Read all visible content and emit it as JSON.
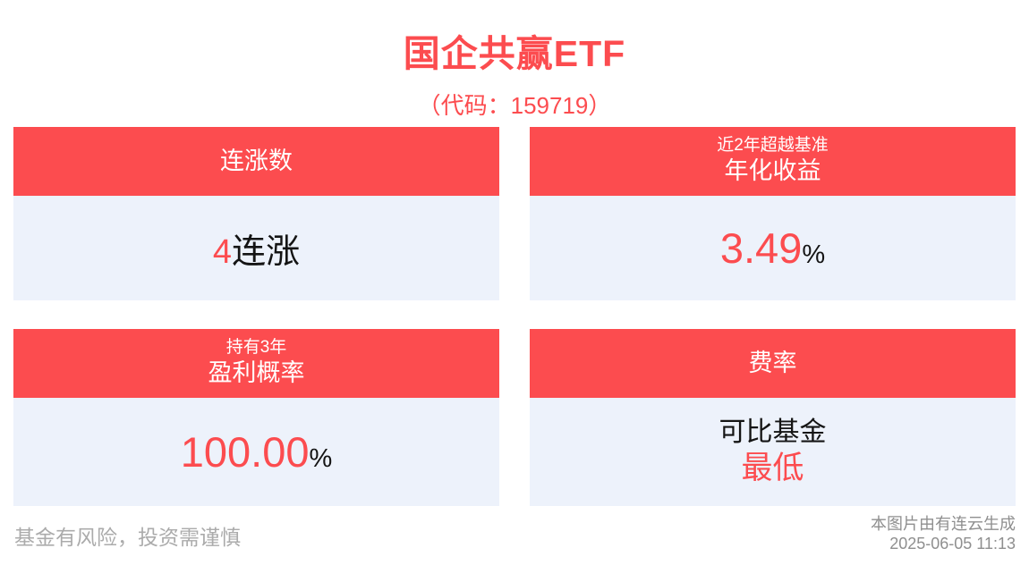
{
  "colors": {
    "accent": "#fc4c4f",
    "card_bg": "#edf2fb",
    "text_dark": "#141414",
    "text_gray": "#8f8f8f",
    "text_gray_light": "#ababab"
  },
  "header": {
    "title": "国企共赢ETF",
    "subtitle": "（代码：159719）"
  },
  "cards": {
    "rise": {
      "title": "连涨数",
      "value_accent": "4",
      "value_suffix": "连涨"
    },
    "annual_return": {
      "title_small": "近2年超越基准",
      "title_main": "年化收益",
      "value_accent": "3.49",
      "value_suffix": "%"
    },
    "profit_probability": {
      "title_small": "持有3年",
      "title_main": "盈利概率",
      "value_accent": "100.00",
      "value_suffix": "%"
    },
    "fee": {
      "title": "费率",
      "value_line1": "可比基金",
      "value_line2": "最低"
    }
  },
  "footer": {
    "disclaimer": "基金有风险，投资需谨慎",
    "credit": "本图片由有连云生成",
    "timestamp": "2025-06-05 11:13"
  }
}
